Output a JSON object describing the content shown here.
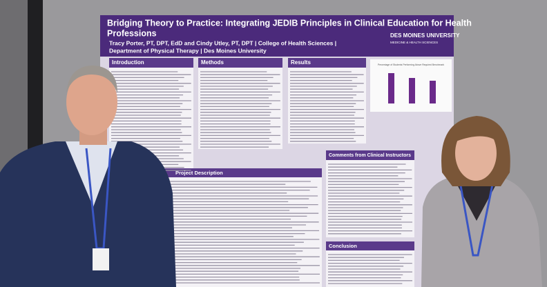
{
  "poster": {
    "title_line1": "Bridging Theory to Practice: Integrating JEDIB Principles in Clinical Education for Health",
    "title_line2": "Professions",
    "authors_line1": "Tracy Porter, PT, DPT, EdD and Cindy Utley, PT, DPT | College of Health Sciences |",
    "authors_line2": "Department of Physical Therapy | Des Moines University",
    "logo_name": "DES MOINES UNIVERSITY",
    "logo_tagline": "MEDICINE & HEALTH SCIENCES",
    "sections": {
      "introduction": "Introduction",
      "methods": "Methods",
      "results": "Results",
      "project_description": "Project Description",
      "comments": "Comments from Clinical Instructors",
      "conclusion": "Conclusion"
    },
    "chart_title": "Percentage of Students Performing Above Required Benchmark"
  }
}
